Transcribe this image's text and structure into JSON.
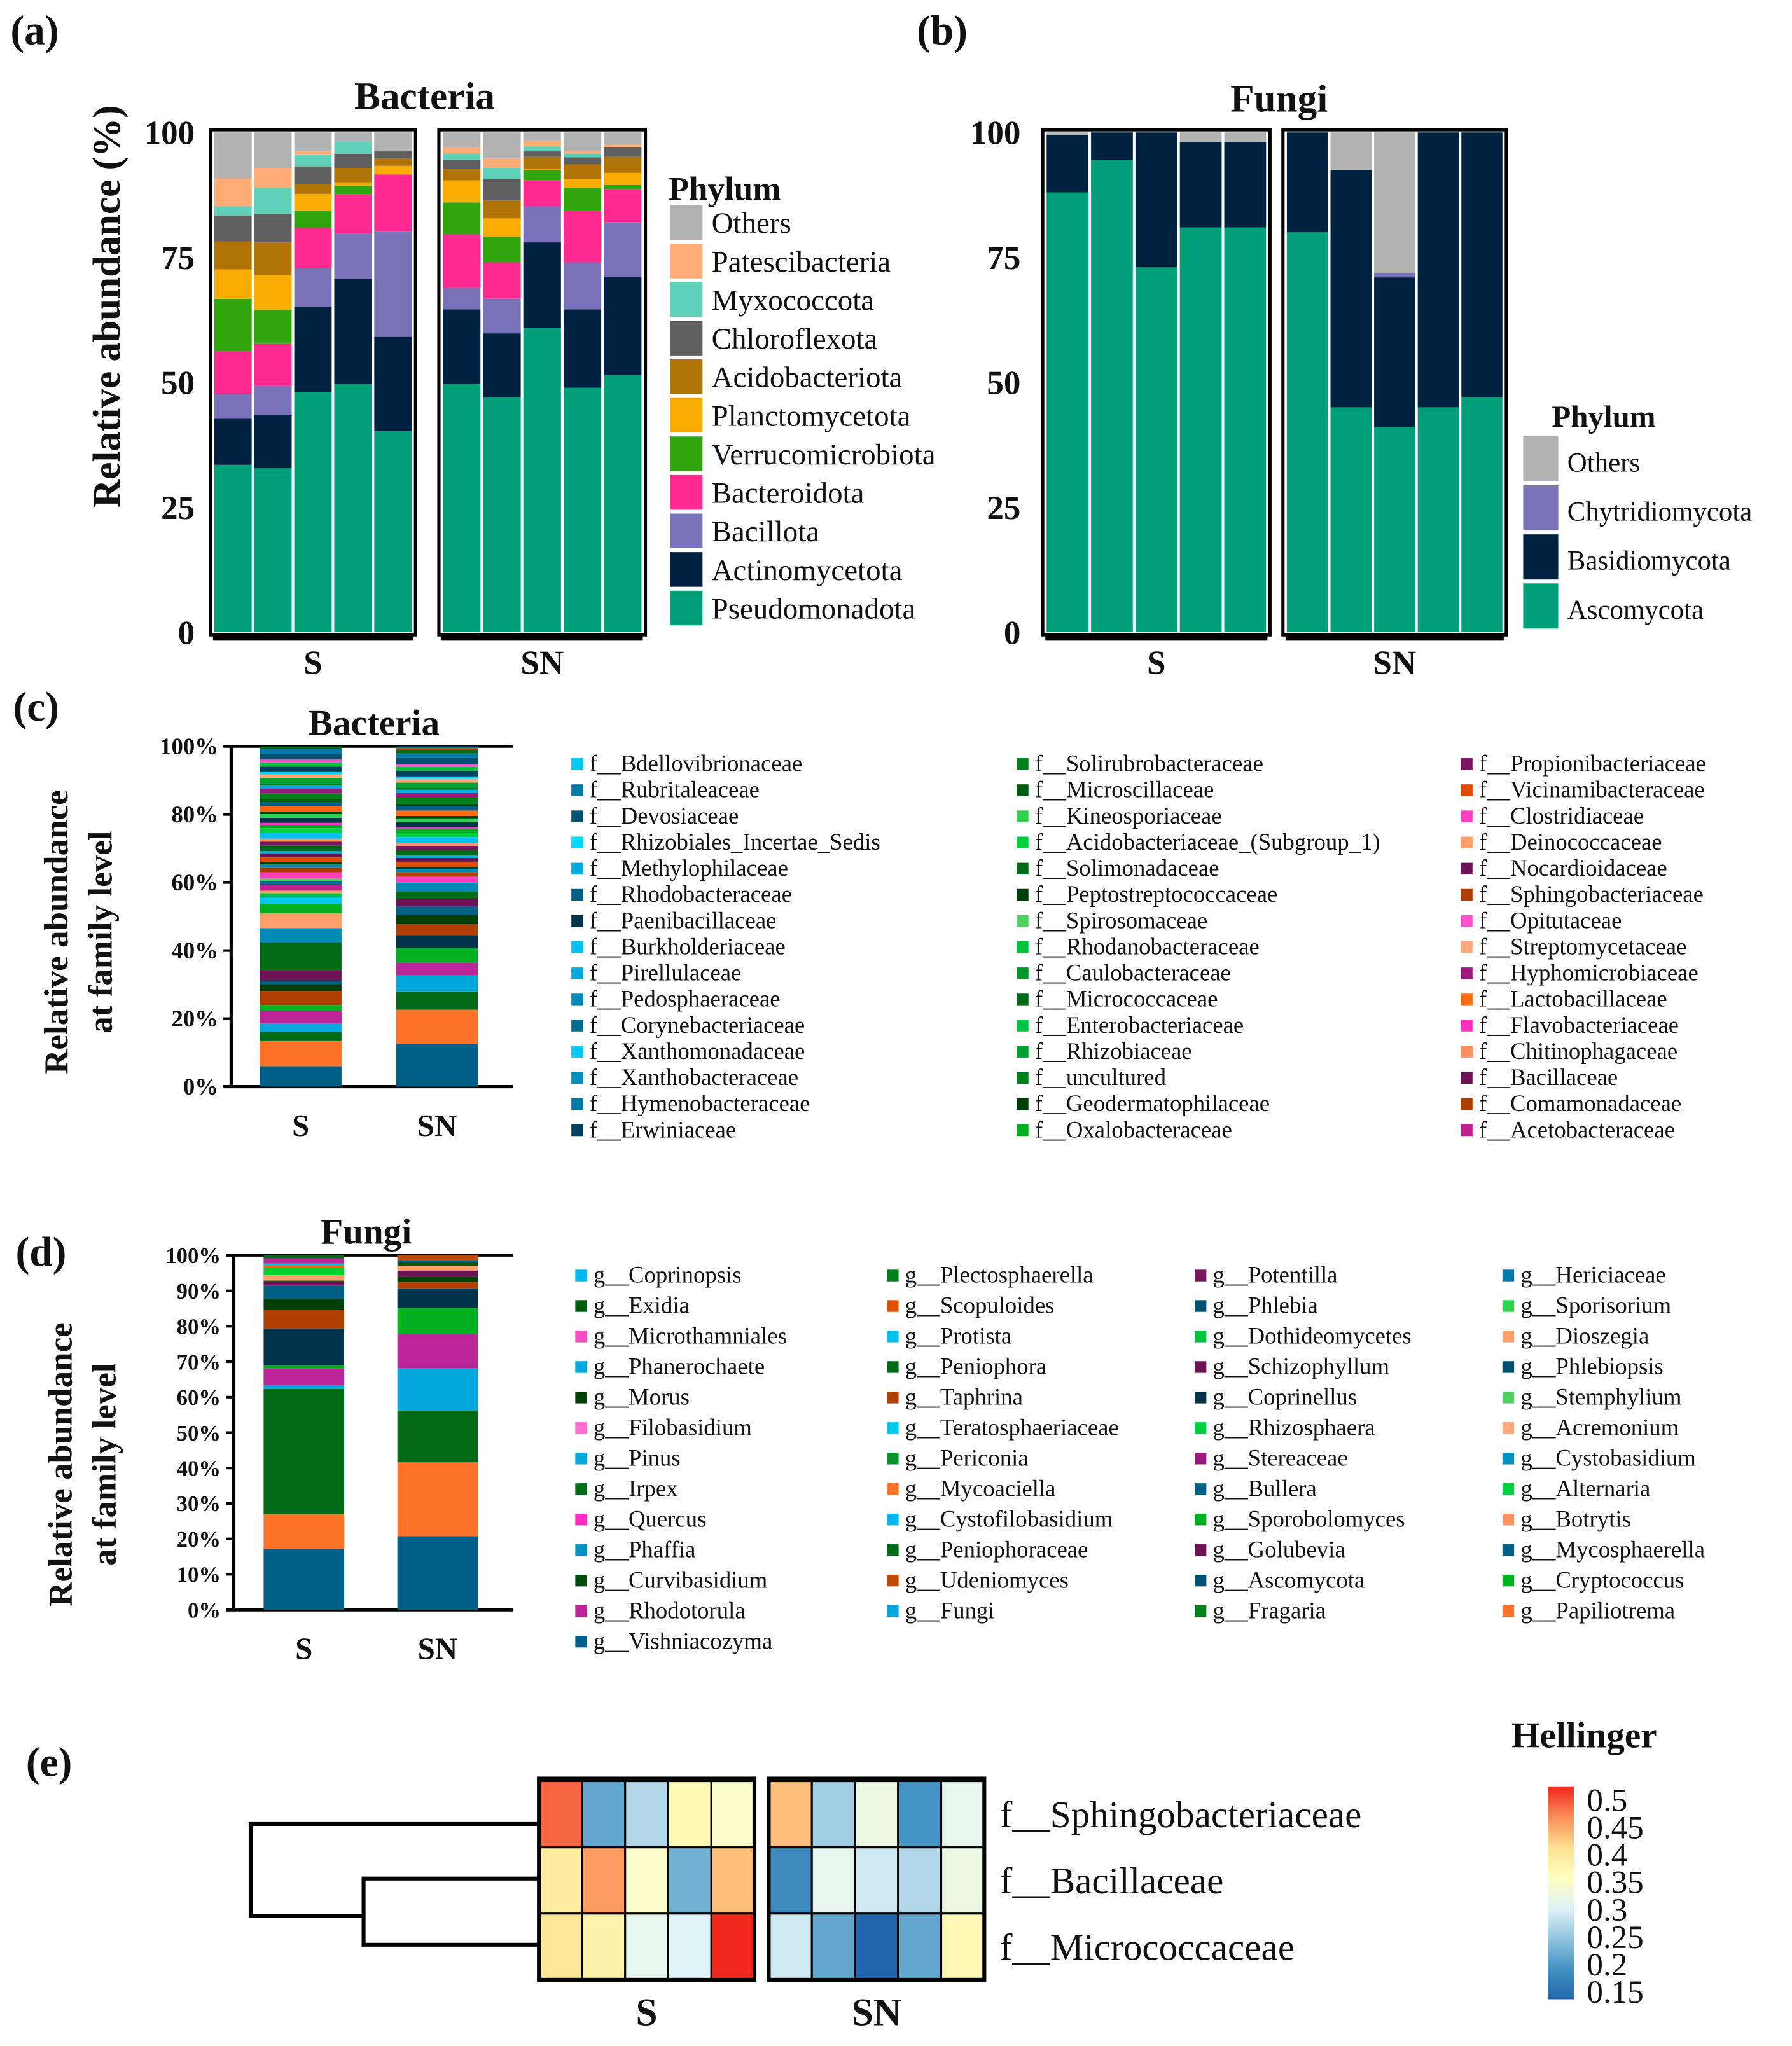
{
  "panels": {
    "a": "(a)",
    "b": "(b)",
    "c": "(c)",
    "d": "(d)",
    "e": "(e)"
  },
  "chart_data": [
    {
      "id": "a",
      "type": "bar",
      "stacked": true,
      "title": "Bacteria",
      "ylabel": "Relative abundance (%)",
      "ylim": [
        0,
        100
      ],
      "yticks": [
        "0",
        "25",
        "50",
        "75",
        "100"
      ],
      "groups": [
        "S",
        "SN"
      ],
      "legend_title": "Phylum",
      "series_names": [
        "Pseudomonadota",
        "Actinomycetota",
        "Bacillota",
        "Bacteroidota",
        "Verrucomicrobiota",
        "Planctomycetota",
        "Acidobacteriota",
        "Chloroflexota",
        "Myxococcota",
        "Patescibacteria",
        "Others"
      ],
      "colors": [
        "#009e79",
        "#002240",
        "#7a72b8",
        "#ff2a8f",
        "#30a50e",
        "#f8ab00",
        "#b07408",
        "#5f5f5f",
        "#5fd1b8",
        "#ffac78",
        "#b2b2b2"
      ],
      "samples": [
        {
          "group": "S",
          "values": [
            33.5,
            9.2,
            5.0,
            8.5,
            10.5,
            5.9,
            5.6,
            5.2,
            1.8,
            5.6,
            9.2
          ]
        },
        {
          "group": "S",
          "values": [
            32.8,
            10.6,
            5.9,
            8.4,
            6.8,
            7.0,
            6.5,
            5.7,
            5.2,
            4.0,
            7.1
          ]
        },
        {
          "group": "S",
          "values": [
            48.1,
            17.1,
            7.6,
            8.1,
            3.5,
            3.3,
            1.9,
            3.6,
            2.4,
            0.6,
            3.8
          ]
        },
        {
          "group": "S",
          "values": [
            49.6,
            21.1,
            9.0,
            7.9,
            1.7,
            0.7,
            2.9,
            2.8,
            2.5,
            0.0,
            1.8
          ]
        },
        {
          "group": "S",
          "values": [
            40.2,
            18.9,
            21.1,
            11.4,
            0.0,
            1.7,
            1.5,
            1.4,
            0.0,
            0.0,
            3.8
          ]
        },
        {
          "group": "SN",
          "values": [
            49.6,
            15.0,
            4.3,
            10.7,
            6.4,
            4.4,
            2.3,
            1.8,
            1.3,
            1.3,
            2.9
          ]
        },
        {
          "group": "SN",
          "values": [
            47.0,
            12.8,
            7.0,
            7.2,
            5.1,
            3.7,
            3.6,
            4.3,
            2.2,
            1.9,
            5.2
          ]
        },
        {
          "group": "SN",
          "values": [
            60.9,
            17.1,
            7.2,
            5.2,
            2.0,
            0.3,
            2.4,
            1.1,
            1.0,
            1.2,
            1.6
          ]
        },
        {
          "group": "SN",
          "values": [
            48.9,
            15.7,
            9.4,
            10.3,
            4.6,
            1.8,
            2.9,
            1.4,
            0.8,
            0.5,
            3.7
          ]
        },
        {
          "group": "SN",
          "values": [
            51.4,
            19.7,
            10.9,
            6.6,
            0.9,
            2.4,
            3.2,
            2.0,
            0.0,
            0.4,
            2.5
          ]
        }
      ]
    },
    {
      "id": "b",
      "type": "bar",
      "stacked": true,
      "title": "Fungi",
      "ylim": [
        0,
        100
      ],
      "yticks": [
        "0",
        "25",
        "50",
        "75",
        "100"
      ],
      "groups": [
        "S",
        "SN"
      ],
      "legend_title": "Phylum",
      "series_names": [
        "Ascomycota",
        "Basidiomycota",
        "Chytridiomycota",
        "Others"
      ],
      "colors": [
        "#009e79",
        "#002240",
        "#7a72b8",
        "#b2b2b2"
      ],
      "samples": [
        {
          "group": "S",
          "values": [
            88,
            11.5,
            0,
            0.5
          ]
        },
        {
          "group": "S",
          "values": [
            94.5,
            5.5,
            0,
            0
          ]
        },
        {
          "group": "S",
          "values": [
            73,
            27,
            0,
            0
          ]
        },
        {
          "group": "S",
          "values": [
            81,
            17,
            0,
            2
          ]
        },
        {
          "group": "S",
          "values": [
            81,
            17,
            0,
            2
          ]
        },
        {
          "group": "SN",
          "values": [
            80,
            20,
            0,
            0
          ]
        },
        {
          "group": "SN",
          "values": [
            45,
            47.5,
            0,
            7.5
          ]
        },
        {
          "group": "SN",
          "values": [
            41,
            30,
            0.8,
            28.2
          ]
        },
        {
          "group": "SN",
          "values": [
            45,
            55,
            0,
            0
          ]
        },
        {
          "group": "SN",
          "values": [
            47,
            53,
            0,
            0
          ]
        }
      ]
    },
    {
      "id": "c",
      "type": "bar",
      "stacked": true,
      "title": "Bacteria",
      "ylabel": [
        "Relative abundance",
        "at family level"
      ],
      "ylim": [
        0,
        100
      ],
      "yticks": [
        "0%",
        "20%",
        "40%",
        "60%",
        "80%",
        "100%"
      ],
      "categories": [
        "S",
        "SN"
      ],
      "major_segments": [
        {
          "values": [
            6.0,
            7.4,
            2.7,
            2.5,
            3.6,
            1.8,
            4.1,
            2.0,
            1.0,
            3.2,
            8.0,
            4.3,
            4.3,
            2.8
          ],
          "colors": [
            "#005f86",
            "#ff7329",
            "#006a17",
            "#00a6dc",
            "#bb2597",
            "#00b020",
            "#b03e00",
            "#003f08",
            "#005f86",
            "#6e1256",
            "#006a17",
            "#008ab8",
            "#ff9f6a",
            "#00b020"
          ]
        },
        {
          "values": [
            12.5,
            10.1,
            5.4,
            4.7,
            3.8,
            4.3,
            3.7,
            3.2,
            2.8,
            2.5,
            2.2,
            2.1,
            2.7
          ],
          "colors": [
            "#005f86",
            "#ff7329",
            "#006a17",
            "#00a6dc",
            "#bb2597",
            "#00b020",
            "#00344d",
            "#b03e00",
            "#003f08",
            "#005f86",
            "#6e1256",
            "#006a17",
            "#008ab8"
          ]
        }
      ],
      "remaining_small_segments": "many families of ~1-2% each filling to 100%",
      "legend": [
        [
          "f__Bdellovibrionaceae",
          "f__Rubritaleaceae",
          "f__Devosiaceae",
          "f__Rhizobiales_Incertae_Sedis",
          "f__Methylophilaceae",
          "f__Rhodobacteraceae",
          "f__Paenibacillaceae",
          "f__Burkholderiaceae",
          "f__Pirellulaceae",
          "f__Pedosphaeraceae",
          "f__Corynebacteriaceae",
          "f__Xanthomonadaceae",
          "f__Xanthobacteraceae",
          "f__Hymenobacteraceae",
          "f__Erwiniaceae"
        ],
        [
          "f__Solirubrobacteraceae",
          "f__Microscillaceae",
          "f__Kineosporiaceae",
          "f__Acidobacteriaceae_(Subgroup_1)",
          "f__Solimonadaceae",
          "f__Peptostreptococcaceae",
          "f__Spirosomaceae",
          "f__Rhodanobacteraceae",
          "f__Caulobacteraceae",
          "f__Micrococcaceae",
          "f__Enterobacteriaceae",
          "f__Rhizobiaceae",
          "f__uncultured",
          "f__Geodermatophilaceae",
          "f__Oxalobacteraceae"
        ],
        [
          "f__Propionibacteriaceae",
          "f__Vicinamibacteraceae",
          "f__Clostridiaceae",
          "f__Deinococcaceae",
          "f__Nocardioidaceae",
          "f__Sphingobacteriaceae",
          "f__Opitutaceae",
          "f__Streptomycetaceae",
          "f__Hyphomicrobiaceae",
          "f__Lactobacillaceae",
          "f__Flavobacteriaceae",
          "f__Chitinophagaceae",
          "f__Bacillaceae",
          "f__Comamonadaceae",
          "f__Acetobacteraceae"
        ]
      ]
    },
    {
      "id": "d",
      "type": "bar",
      "stacked": true,
      "title": "Fungi",
      "ylabel": [
        "Relative abundance",
        "at family level"
      ],
      "ylim": [
        0,
        100
      ],
      "yticks": [
        "0%",
        "10%",
        "20%",
        "30%",
        "40%",
        "50%",
        "60%",
        "70%",
        "80%",
        "90%",
        "100%"
      ],
      "categories": [
        "S",
        "SN"
      ],
      "major_segments": [
        {
          "values": [
            17.2,
            9.8,
            35.3,
            1.0,
            4.8,
            0.9,
            10.4,
            5.3,
            3.0,
            3.8,
            1.0,
            0.4,
            1.5,
            2.0,
            0.7
          ],
          "colors": [
            "#005f86",
            "#ff7329",
            "#006a17",
            "#00a6dc",
            "#bb2597",
            "#00b020",
            "#00344d",
            "#b03e00",
            "#003f08",
            "#005f86",
            "#6e1256",
            "#006a17",
            "#ff9f6a",
            "#00d030",
            "#e86a10"
          ]
        },
        {
          "values": [
            20.8,
            20.8,
            14.6,
            11.9,
            9.8,
            7.3,
            5.5,
            1.7,
            1.6
          ],
          "colors": [
            "#005f86",
            "#ff7329",
            "#006a17",
            "#00a6dc",
            "#bb2597",
            "#00b020",
            "#00344d",
            "#b03e00",
            "#003f08"
          ]
        }
      ],
      "remaining_small_segments": "many genera <1% each filling to 100%",
      "legend": [
        [
          "g__Coprinopsis",
          "g__Exidia",
          "g__Microthamniales",
          "g__Phanerochaete",
          "g__Morus",
          "g__Filobasidium",
          "g__Pinus",
          "g__Irpex",
          "g__Quercus",
          "g__Phaffia",
          "g__Curvibasidium",
          "g__Rhodotorula",
          "g__Vishniacozyma"
        ],
        [
          "g__Plectosphaerella",
          "g__Scopuloides",
          "g__Protista",
          "g__Peniophora",
          "g__Taphrina",
          "g__Teratosphaeriaceae",
          "g__Periconia",
          "g__Mycoaciella",
          "g__Cystofilobasidium",
          "g__Peniophoraceae",
          "g__Udeniomyces",
          "g__Fungi"
        ],
        [
          "g__Potentilla",
          "g__Phlebia",
          "g__Dothideomycetes",
          "g__Schizophyllum",
          "g__Coprinellus",
          "g__Rhizosphaera",
          "g__Stereaceae",
          "g__Bullera",
          "g__Sporobolomyces",
          "g__Golubevia",
          "g__Ascomycota",
          "g__Fragaria"
        ],
        [
          "g__Hericiaceae",
          "g__Sporisorium",
          "g__Dioszegia",
          "g__Phlebiopsis",
          "g__Stemphylium",
          "g__Acremonium",
          "g__Cystobasidium",
          "g__Alternaria",
          "g__Botrytis",
          "g__Mycosphaerella",
          "g__Cryptococcus",
          "g__Papiliotrema"
        ]
      ]
    },
    {
      "id": "e",
      "type": "heatmap",
      "colorbar_title": "Hellinger",
      "colorbar_ticks": [
        "0.5",
        "0.45",
        "0.4",
        "0.35",
        "0.3",
        "0.25",
        "0.2",
        "0.15"
      ],
      "range": [
        0.15,
        0.5
      ],
      "groups": [
        "S",
        "SN"
      ],
      "rows": [
        "f__Sphingobacteriaceae",
        "f__Bacillaceae",
        "f__Micrococcaceae"
      ],
      "values": [
        [
          0.47,
          0.22,
          0.27,
          0.36,
          0.34,
          0.42,
          0.26,
          0.32,
          0.2,
          0.31
        ],
        [
          0.38,
          0.44,
          0.34,
          0.23,
          0.42,
          0.19,
          0.31,
          0.29,
          0.27,
          0.32
        ],
        [
          0.39,
          0.37,
          0.31,
          0.3,
          0.5,
          0.29,
          0.22,
          0.15,
          0.22,
          0.36
        ]
      ],
      "dendrogram": "rows 2 and 3 cluster first, then join row 1"
    }
  ],
  "palettes": {
    "c": [
      [
        "#00c8f0",
        "#0078a8",
        "#005070",
        "#00d8ff",
        "#00a8e0",
        "#005f86",
        "#00344d",
        "#00c0f0",
        "#00a6dc",
        "#008ab8",
        "#006b8f",
        "#00c8f0",
        "#0090c0",
        "#0078a8",
        "#004060"
      ],
      [
        "#00801a",
        "#005a10",
        "#30d050",
        "#00d040",
        "#006a17",
        "#003f08",
        "#50d060",
        "#00c040",
        "#00962a",
        "#006a17",
        "#00c040",
        "#00a030",
        "#00801a",
        "#003f08",
        "#00b020"
      ],
      [
        "#7a1560",
        "#e04a00",
        "#ff40c0",
        "#ff9f6a",
        "#6e1256",
        "#b03e00",
        "#ff50d0",
        "#ffaa80",
        "#9a1a80",
        "#ff6a10",
        "#ff30c0",
        "#ff9060",
        "#6e1256",
        "#b03e00",
        "#c02090"
      ]
    ],
    "d": [
      [
        "#00b8f0",
        "#005a10",
        "#f050c0",
        "#00a6dc",
        "#003f08",
        "#ff70d0",
        "#00a6dc",
        "#006a17",
        "#ff30c0",
        "#0090c0",
        "#004a10",
        "#bb2597",
        "#005f86"
      ],
      [
        "#00801a",
        "#e05000",
        "#00c0f0",
        "#006a17",
        "#b03e00",
        "#00c8f0",
        "#00962a",
        "#ff7329",
        "#00b8f0",
        "#006a17",
        "#c04a00",
        "#00a6dc"
      ],
      [
        "#7a1560",
        "#005070",
        "#00c040",
        "#6e1256",
        "#00344d",
        "#00d040",
        "#9a1a80",
        "#005f86",
        "#00b020",
        "#6e1256",
        "#005070",
        "#00801a"
      ],
      [
        "#0078a8",
        "#30d050",
        "#ff9f6a",
        "#005070",
        "#50d060",
        "#ffaa80",
        "#0090c0",
        "#00d040",
        "#ff9060",
        "#005f86",
        "#00b020",
        "#ff7329"
      ]
    ]
  }
}
